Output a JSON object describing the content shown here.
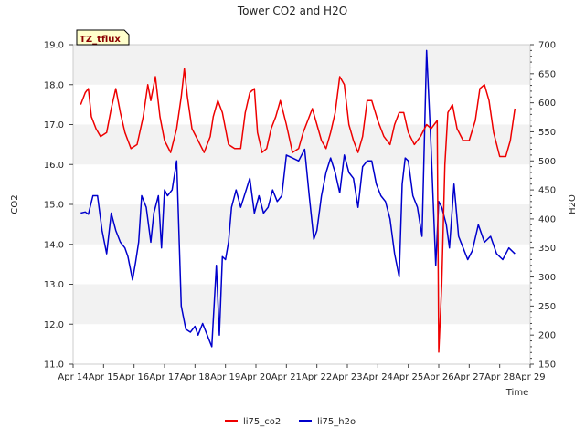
{
  "chart_data": {
    "type": "line",
    "title": "Tower CO2 and H2O",
    "badge": "TZ_tflux",
    "xlabel": "Time",
    "ylabel_left": "CO2",
    "ylabel_right": "H2O",
    "x_ticks": [
      "Apr 14",
      "Apr 15",
      "Apr 16",
      "Apr 17",
      "Apr 18",
      "Apr 19",
      "Apr 20",
      "Apr 21",
      "Apr 22",
      "Apr 23",
      "Apr 24",
      "Apr 25",
      "Apr 26",
      "Apr 27",
      "Apr 28",
      "Apr 29"
    ],
    "xlim_days": [
      14,
      29
    ],
    "ylim_left": [
      11.0,
      19.0
    ],
    "ylim_right": [
      150,
      700
    ],
    "y_ticks_left": [
      "11.0",
      "12.0",
      "13.0",
      "14.0",
      "15.0",
      "16.0",
      "17.0",
      "18.0",
      "19.0"
    ],
    "y_ticks_right": [
      "150",
      "200",
      "250",
      "300",
      "350",
      "400",
      "450",
      "500",
      "550",
      "600",
      "650",
      "700"
    ],
    "legend": [
      {
        "name": "li75_co2",
        "color": "#ee0000"
      },
      {
        "name": "li75_h2o",
        "color": "#0000cc"
      }
    ],
    "grid": "horizontal bands",
    "series": [
      {
        "name": "li75_co2",
        "axis": "left",
        "color": "#ee0000",
        "x": [
          14.25,
          14.4,
          14.5,
          14.6,
          14.75,
          14.9,
          15.1,
          15.25,
          15.4,
          15.55,
          15.7,
          15.8,
          15.9,
          16.1,
          16.3,
          16.45,
          16.55,
          16.7,
          16.85,
          17.0,
          17.2,
          17.4,
          17.55,
          17.65,
          17.75,
          17.9,
          18.1,
          18.3,
          18.5,
          18.6,
          18.75,
          18.9,
          19.1,
          19.3,
          19.5,
          19.65,
          19.8,
          19.95,
          20.05,
          20.2,
          20.35,
          20.5,
          20.65,
          20.8,
          21.0,
          21.2,
          21.4,
          21.55,
          21.7,
          21.85,
          22.0,
          22.15,
          22.3,
          22.45,
          22.6,
          22.75,
          22.9,
          23.05,
          23.2,
          23.35,
          23.5,
          23.65,
          23.8,
          24.0,
          24.2,
          24.4,
          24.55,
          24.7,
          24.85,
          25.0,
          25.2,
          25.4,
          25.6,
          25.75,
          25.85,
          25.95,
          26.0,
          26.1,
          26.2,
          26.3,
          26.45,
          26.6,
          26.8,
          27.0,
          27.2,
          27.35,
          27.5,
          27.65,
          27.8,
          28.0,
          28.2,
          28.35,
          28.5
        ],
        "values": [
          17.5,
          17.8,
          17.9,
          17.2,
          16.9,
          16.7,
          16.8,
          17.4,
          17.9,
          17.3,
          16.8,
          16.6,
          16.4,
          16.5,
          17.2,
          18.0,
          17.6,
          18.2,
          17.2,
          16.6,
          16.3,
          16.9,
          17.7,
          18.4,
          17.7,
          16.9,
          16.6,
          16.3,
          16.7,
          17.2,
          17.6,
          17.3,
          16.5,
          16.4,
          16.4,
          17.3,
          17.8,
          17.9,
          16.8,
          16.3,
          16.4,
          16.9,
          17.2,
          17.6,
          17.0,
          16.3,
          16.4,
          16.8,
          17.1,
          17.4,
          17.0,
          16.6,
          16.4,
          16.8,
          17.3,
          18.2,
          18.0,
          17.0,
          16.6,
          16.3,
          16.7,
          17.6,
          17.6,
          17.1,
          16.7,
          16.5,
          17.0,
          17.3,
          17.3,
          16.8,
          16.5,
          16.7,
          17.0,
          16.9,
          17.0,
          17.1,
          11.3,
          13.0,
          16.0,
          17.3,
          17.5,
          16.9,
          16.6,
          16.6,
          17.1,
          17.9,
          18.0,
          17.6,
          16.8,
          16.2,
          16.2,
          16.6,
          17.4
        ]
      },
      {
        "name": "li75_h2o",
        "axis": "right",
        "color": "#0000cc",
        "x": [
          14.25,
          14.4,
          14.5,
          14.65,
          14.8,
          14.95,
          15.1,
          15.25,
          15.4,
          15.55,
          15.7,
          15.8,
          15.95,
          16.05,
          16.15,
          16.25,
          16.4,
          16.55,
          16.65,
          16.8,
          16.9,
          17.0,
          17.1,
          17.25,
          17.4,
          17.55,
          17.7,
          17.85,
          18.0,
          18.1,
          18.25,
          18.4,
          18.55,
          18.7,
          18.8,
          18.9,
          19.0,
          19.1,
          19.2,
          19.35,
          19.5,
          19.65,
          19.8,
          19.95,
          20.1,
          20.25,
          20.4,
          20.55,
          20.7,
          20.85,
          21.0,
          21.2,
          21.4,
          21.6,
          21.75,
          21.9,
          22.0,
          22.15,
          22.3,
          22.45,
          22.6,
          22.75,
          22.9,
          23.05,
          23.2,
          23.35,
          23.5,
          23.65,
          23.8,
          23.95,
          24.1,
          24.25,
          24.4,
          24.55,
          24.7,
          24.8,
          24.9,
          25.0,
          25.15,
          25.3,
          25.45,
          25.6,
          25.75,
          25.9,
          26.0,
          26.1,
          26.25,
          26.35,
          26.5,
          26.65,
          26.8,
          26.95,
          27.1,
          27.3,
          27.5,
          27.7,
          27.9,
          28.1,
          28.3,
          28.5
        ],
        "values": [
          410,
          412,
          408,
          440,
          440,
          380,
          340,
          410,
          380,
          360,
          350,
          335,
          295,
          325,
          360,
          440,
          420,
          360,
          410,
          440,
          350,
          450,
          440,
          450,
          500,
          250,
          210,
          205,
          215,
          200,
          220,
          200,
          180,
          320,
          200,
          335,
          330,
          360,
          420,
          450,
          420,
          445,
          470,
          410,
          440,
          410,
          420,
          450,
          430,
          440,
          510,
          505,
          500,
          520,
          440,
          365,
          380,
          440,
          480,
          505,
          480,
          445,
          510,
          480,
          470,
          420,
          490,
          500,
          500,
          460,
          440,
          430,
          400,
          340,
          300,
          460,
          505,
          500,
          440,
          420,
          370,
          690,
          520,
          320,
          430,
          420,
          390,
          350,
          460,
          370,
          350,
          330,
          345,
          390,
          360,
          370,
          340,
          330,
          350,
          340
        ]
      }
    ]
  }
}
